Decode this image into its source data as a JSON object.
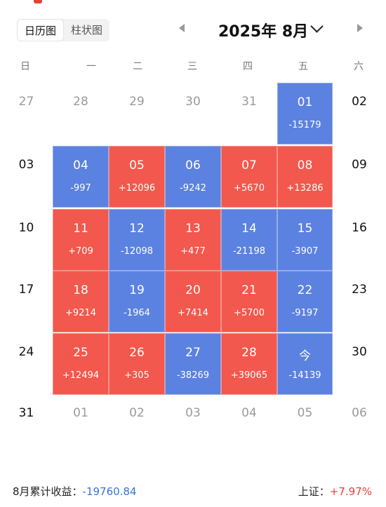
{
  "header": {
    "views": [
      "日历图",
      "柱状图"
    ],
    "month_title": "2025年 8月"
  },
  "weekdays": [
    "日",
    "一",
    "二",
    "三",
    "四",
    "五",
    "六"
  ],
  "colors": {
    "gain": "#f2584d",
    "loss": "#5b82e0",
    "total": "#3a74d8",
    "index": "#e8413a"
  },
  "weeks": [
    [
      {
        "day": "27",
        "kind": "other"
      },
      {
        "day": "28",
        "kind": "other"
      },
      {
        "day": "29",
        "kind": "other"
      },
      {
        "day": "30",
        "kind": "other"
      },
      {
        "day": "31",
        "kind": "other"
      },
      {
        "day": "01",
        "kind": "loss",
        "pnl": "-15179"
      },
      {
        "day": "02",
        "kind": "weekend"
      }
    ],
    [
      {
        "day": "03",
        "kind": "weekend"
      },
      {
        "day": "04",
        "kind": "loss",
        "pnl": "-997"
      },
      {
        "day": "05",
        "kind": "gain",
        "pnl": "+12096"
      },
      {
        "day": "06",
        "kind": "loss",
        "pnl": "-9242"
      },
      {
        "day": "07",
        "kind": "gain",
        "pnl": "+5670"
      },
      {
        "day": "08",
        "kind": "gain",
        "pnl": "+13286"
      },
      {
        "day": "09",
        "kind": "weekend"
      }
    ],
    [
      {
        "day": "10",
        "kind": "weekend"
      },
      {
        "day": "11",
        "kind": "gain",
        "pnl": "+709"
      },
      {
        "day": "12",
        "kind": "loss",
        "pnl": "-12098"
      },
      {
        "day": "13",
        "kind": "gain",
        "pnl": "+477"
      },
      {
        "day": "14",
        "kind": "loss",
        "pnl": "-21198"
      },
      {
        "day": "15",
        "kind": "loss",
        "pnl": "-3907"
      },
      {
        "day": "16",
        "kind": "weekend"
      }
    ],
    [
      {
        "day": "17",
        "kind": "weekend"
      },
      {
        "day": "18",
        "kind": "gain",
        "pnl": "+9214"
      },
      {
        "day": "19",
        "kind": "loss",
        "pnl": "-1964"
      },
      {
        "day": "20",
        "kind": "gain",
        "pnl": "+7414"
      },
      {
        "day": "21",
        "kind": "gain",
        "pnl": "+5700"
      },
      {
        "day": "22",
        "kind": "loss",
        "pnl": "-9197"
      },
      {
        "day": "23",
        "kind": "weekend"
      }
    ],
    [
      {
        "day": "24",
        "kind": "weekend"
      },
      {
        "day": "25",
        "kind": "gain",
        "pnl": "+12494"
      },
      {
        "day": "26",
        "kind": "gain",
        "pnl": "+305"
      },
      {
        "day": "27",
        "kind": "loss",
        "pnl": "-38269"
      },
      {
        "day": "28",
        "kind": "gain",
        "pnl": "+39065"
      },
      {
        "day": "今",
        "kind": "loss",
        "pnl": "-14139"
      },
      {
        "day": "30",
        "kind": "weekend"
      }
    ],
    [
      {
        "day": "31",
        "kind": "weekend"
      },
      {
        "day": "01",
        "kind": "other"
      },
      {
        "day": "02",
        "kind": "other"
      },
      {
        "day": "03",
        "kind": "other"
      },
      {
        "day": "04",
        "kind": "other"
      },
      {
        "day": "05",
        "kind": "other"
      },
      {
        "day": "06",
        "kind": "other"
      }
    ]
  ],
  "footer": {
    "total_label": "8月累计收益：",
    "total_value": "-19760.84",
    "index_label": "上证：",
    "index_value": "+7.97%"
  }
}
